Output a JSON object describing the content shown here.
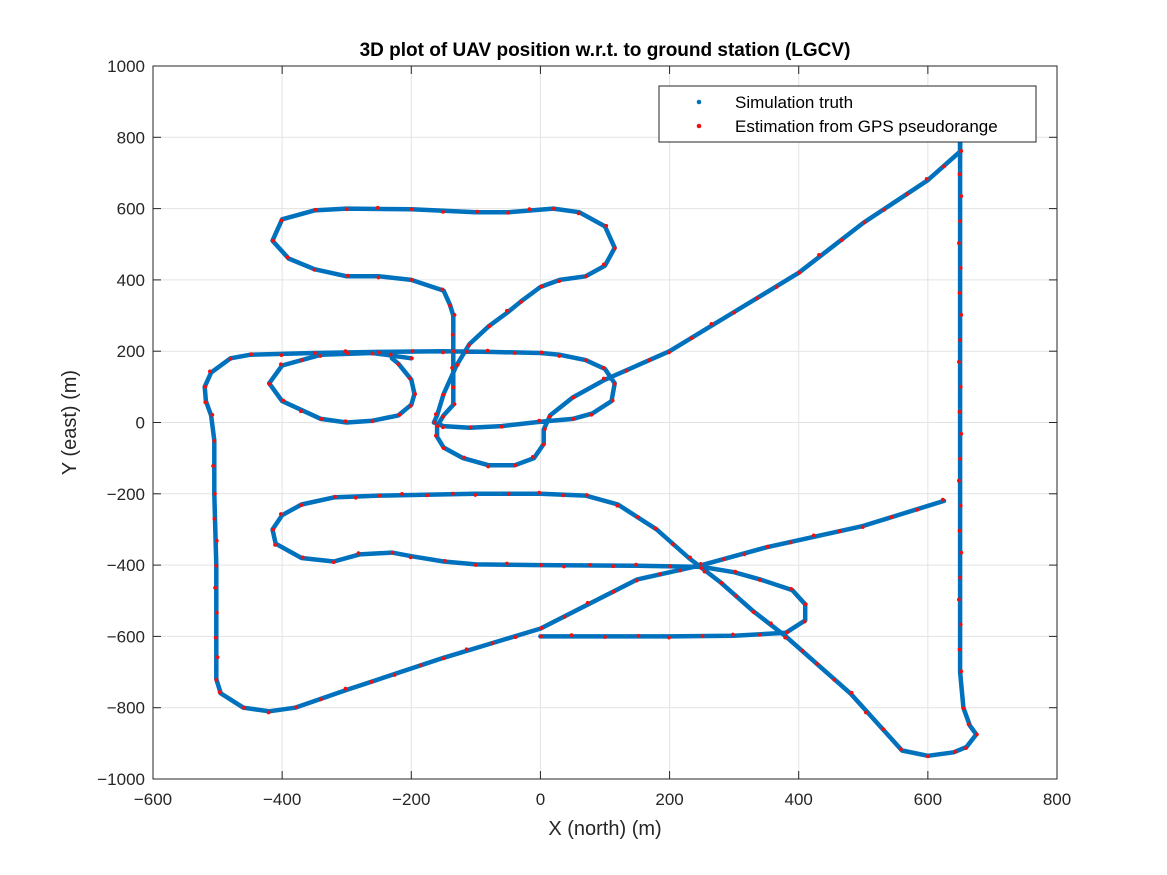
{
  "chart_data": {
    "type": "line",
    "title": "3D plot of UAV position w.r.t. to ground station (LGCV)",
    "xlabel": "X (north) (m)",
    "ylabel": "Y (east) (m)",
    "xlim": [
      -600,
      800
    ],
    "ylim": [
      -1000,
      1000
    ],
    "xticks": [
      -600,
      -400,
      -200,
      0,
      200,
      400,
      600,
      800
    ],
    "yticks": [
      -1000,
      -800,
      -600,
      -400,
      -200,
      0,
      200,
      400,
      600,
      800,
      1000
    ],
    "grid": true,
    "legend_position": "top-right",
    "series": [
      {
        "name": "Simulation truth",
        "color": "#0072BD",
        "marker": "dot-line",
        "points": [
          [
            625,
            -220
          ],
          [
            500,
            -290
          ],
          [
            350,
            -350
          ],
          [
            250,
            -400
          ],
          [
            150,
            -440
          ],
          [
            0,
            -578
          ],
          [
            -150,
            -660
          ],
          [
            -300,
            -750
          ],
          [
            -380,
            -800
          ],
          [
            -420,
            -810
          ],
          [
            -460,
            -800
          ],
          [
            -495,
            -760
          ],
          [
            -502,
            -720
          ],
          [
            -502,
            -600
          ],
          [
            -502,
            -400
          ],
          [
            -505,
            -200
          ],
          [
            -505,
            -50
          ],
          [
            -510,
            20
          ],
          [
            -518,
            60
          ],
          [
            -520,
            100
          ],
          [
            -510,
            140
          ],
          [
            -480,
            180
          ],
          [
            -450,
            190
          ],
          [
            -350,
            195
          ],
          [
            -250,
            198
          ],
          [
            -150,
            200
          ],
          [
            -80,
            198
          ],
          [
            0,
            195
          ],
          [
            30,
            190
          ],
          [
            70,
            175
          ],
          [
            100,
            150
          ],
          [
            115,
            110
          ],
          [
            110,
            60
          ],
          [
            80,
            25
          ],
          [
            50,
            10
          ],
          [
            0,
            2
          ],
          [
            -60,
            -10
          ],
          [
            -110,
            -15
          ],
          [
            -150,
            -10
          ],
          [
            -165,
            0
          ],
          [
            -160,
            20
          ],
          [
            -150,
            80
          ],
          [
            -130,
            160
          ],
          [
            -110,
            220
          ],
          [
            -80,
            270
          ],
          [
            -50,
            310
          ],
          [
            -30,
            340
          ],
          [
            0,
            380
          ],
          [
            30,
            400
          ],
          [
            70,
            410
          ],
          [
            100,
            440
          ],
          [
            115,
            490
          ],
          [
            100,
            550
          ],
          [
            60,
            590
          ],
          [
            20,
            600
          ],
          [
            -50,
            590
          ],
          [
            -100,
            590
          ],
          [
            -200,
            598
          ],
          [
            -300,
            600
          ],
          [
            -350,
            595
          ],
          [
            -400,
            570
          ],
          [
            -415,
            510
          ],
          [
            -390,
            460
          ],
          [
            -350,
            430
          ],
          [
            -300,
            410
          ],
          [
            -250,
            410
          ],
          [
            -200,
            400
          ],
          [
            -150,
            370
          ],
          [
            -140,
            330
          ],
          [
            -135,
            300
          ],
          [
            -135,
            250
          ],
          [
            -135,
            200
          ],
          [
            -135,
            150
          ],
          [
            -135,
            100
          ],
          [
            -135,
            50
          ],
          [
            -150,
            20
          ],
          [
            -160,
            -10
          ],
          [
            -160,
            -40
          ],
          [
            -150,
            -70
          ],
          [
            -120,
            -100
          ],
          [
            -80,
            -120
          ],
          [
            -40,
            -120
          ],
          [
            -10,
            -100
          ],
          [
            5,
            -60
          ],
          [
            5,
            -20
          ],
          [
            15,
            20
          ],
          [
            50,
            70
          ],
          [
            100,
            120
          ],
          [
            200,
            200
          ],
          [
            300,
            310
          ],
          [
            400,
            420
          ],
          [
            500,
            560
          ],
          [
            600,
            680
          ],
          [
            650,
            760
          ],
          [
            650,
            800
          ],
          [
            660,
            850
          ]
        ]
      },
      {
        "name": "Estimation from GPS pseudorange",
        "color": "#EE1111",
        "marker": "dot"
      }
    ],
    "extra_paths": [
      [
        [
          0,
          -600
        ],
        [
          100,
          -600
        ],
        [
          200,
          -600
        ],
        [
          300,
          -598
        ],
        [
          380,
          -590
        ],
        [
          410,
          -555
        ],
        [
          410,
          -510
        ],
        [
          390,
          -470
        ],
        [
          340,
          -440
        ],
        [
          300,
          -420
        ],
        [
          250,
          -405
        ],
        [
          150,
          -402
        ],
        [
          0,
          -400
        ],
        [
          -100,
          -398
        ],
        [
          -150,
          -390
        ],
        [
          -200,
          -375
        ],
        [
          -230,
          -365
        ],
        [
          -280,
          -370
        ],
        [
          -320,
          -390
        ],
        [
          -370,
          -380
        ],
        [
          -410,
          -340
        ],
        [
          -415,
          -300
        ],
        [
          -400,
          -260
        ],
        [
          -370,
          -230
        ],
        [
          -320,
          -210
        ],
        [
          -250,
          -205
        ],
        [
          -100,
          -200
        ],
        [
          0,
          -200
        ],
        [
          70,
          -205
        ],
        [
          120,
          -230
        ],
        [
          180,
          -300
        ],
        [
          230,
          -380
        ],
        [
          280,
          -450
        ],
        [
          330,
          -530
        ],
        [
          380,
          -600
        ],
        [
          430,
          -680
        ],
        [
          480,
          -760
        ],
        [
          530,
          -860
        ],
        [
          560,
          -920
        ],
        [
          600,
          -935
        ],
        [
          640,
          -925
        ],
        [
          660,
          -910
        ],
        [
          675,
          -875
        ],
        [
          665,
          -850
        ],
        [
          655,
          -800
        ],
        [
          650,
          -700
        ],
        [
          650,
          -500
        ],
        [
          650,
          -300
        ],
        [
          650,
          -100
        ],
        [
          650,
          100
        ],
        [
          650,
          300
        ],
        [
          650,
          500
        ],
        [
          650,
          700
        ],
        [
          650,
          800
        ]
      ],
      [
        [
          -200,
          180
        ],
        [
          -260,
          195
        ],
        [
          -340,
          190
        ],
        [
          -400,
          160
        ],
        [
          -420,
          110
        ],
        [
          -400,
          60
        ],
        [
          -340,
          10
        ],
        [
          -300,
          0
        ],
        [
          -260,
          5
        ],
        [
          -220,
          20
        ],
        [
          -200,
          50
        ],
        [
          -195,
          80
        ],
        [
          -200,
          120
        ],
        [
          -220,
          165
        ],
        [
          -230,
          180
        ]
      ]
    ]
  },
  "legend": {
    "entries": [
      "Simulation truth",
      "Estimation from GPS pseudorange"
    ]
  }
}
